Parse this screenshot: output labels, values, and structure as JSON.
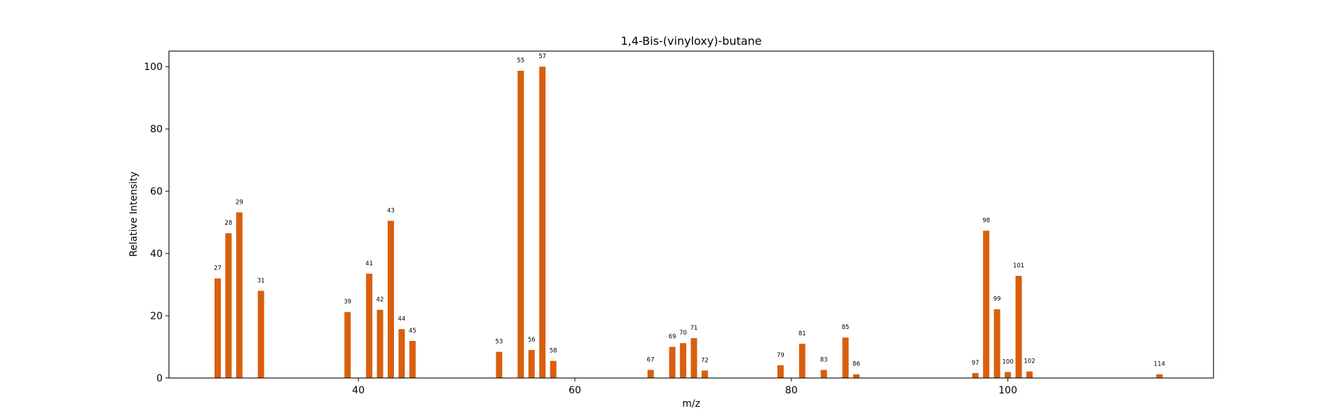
{
  "chart_data": {
    "type": "bar",
    "title": "1,4-Bis-(vinyloxy)-butane",
    "xlabel": "m/z",
    "ylabel": "Relative Intensity",
    "xlim": [
      22.5,
      119
    ],
    "ylim": [
      0,
      105
    ],
    "xticks": [
      40,
      60,
      80,
      100
    ],
    "yticks": [
      0,
      20,
      40,
      60,
      80,
      100
    ],
    "bar_color": "#d95f0e",
    "grid": false,
    "x": [
      27,
      28,
      29,
      31,
      39,
      41,
      42,
      43,
      44,
      45,
      53,
      55,
      56,
      57,
      58,
      67,
      69,
      70,
      71,
      72,
      79,
      81,
      83,
      85,
      86,
      97,
      98,
      99,
      100,
      101,
      102,
      114
    ],
    "values": [
      32,
      46.5,
      53.2,
      28,
      21.2,
      33.5,
      21.9,
      50.5,
      15.7,
      11.9,
      8.4,
      98.7,
      9,
      100,
      5.5,
      2.6,
      10,
      11.2,
      12.8,
      2.4,
      4.1,
      11,
      2.6,
      13,
      1.2,
      1.6,
      47.3,
      22.1,
      1.9,
      32.8,
      2.1,
      1.2
    ]
  }
}
